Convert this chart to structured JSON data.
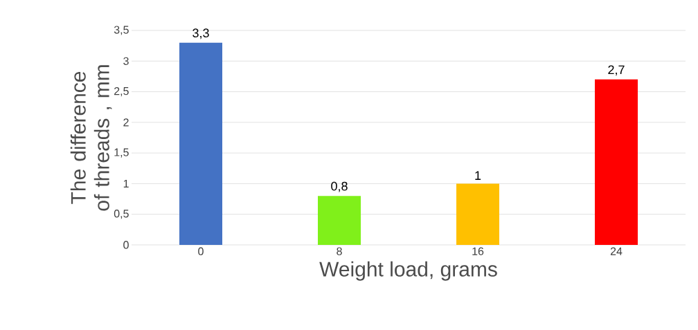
{
  "chart_data": {
    "type": "bar",
    "xlabel": "Weight load, grams",
    "ylabel": "The difference of threads , mm",
    "categories": [
      "0",
      "8",
      "16",
      "24"
    ],
    "values": [
      3.3,
      0.8,
      1,
      2.7
    ],
    "colors": [
      "#4472c4",
      "#80f01a",
      "#ffc000",
      "#ff0000"
    ],
    "value_labels": [
      "3,3",
      "0,8",
      "1",
      "2,7"
    ],
    "ylim": [
      0,
      3.5
    ],
    "yticks": [
      0,
      {
        "value": 0.5,
        "label": "0,5"
      },
      1,
      {
        "value": 1.5,
        "label": "1,5"
      },
      2,
      {
        "value": 2.5,
        "label": "2,5"
      },
      3,
      {
        "value": 3.5,
        "label": "3,5"
      }
    ],
    "grid": "y"
  }
}
